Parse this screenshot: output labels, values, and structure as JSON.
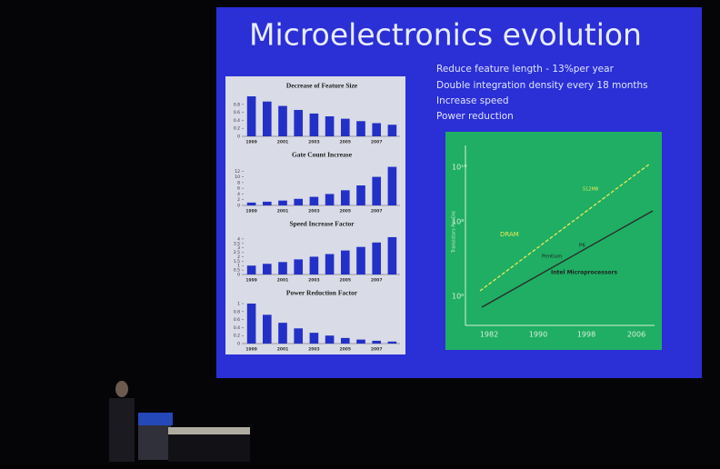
{
  "slide": {
    "title": "Microelectronics evolution",
    "bullets": [
      "Reduce feature length - 13%per year",
      "Double integration density every 18 months",
      "Increase speed",
      "Power reduction"
    ],
    "charts": [
      {
        "title": "Decrease of Feature Size",
        "categories": [
          "1999",
          null,
          "2001",
          null,
          "2003",
          null,
          "2005",
          null,
          "2007",
          null
        ],
        "values": [
          1,
          0.87,
          0.76,
          0.66,
          0.57,
          0.5,
          0.44,
          0.38,
          0.33,
          0.29
        ],
        "ylim": [
          0,
          1
        ],
        "yticks": [
          0,
          0.2,
          0.4,
          0.6,
          0.8
        ]
      },
      {
        "title": "Gate Count Increase",
        "categories": [
          "1999",
          null,
          "2001",
          null,
          "2003",
          null,
          "2005",
          null,
          "2007",
          null
        ],
        "values": [
          1,
          1.3,
          1.7,
          2.3,
          3,
          4,
          5.3,
          7,
          10,
          13.5
        ],
        "ylim": [
          0,
          14
        ],
        "yticks": [
          0,
          2,
          4,
          6,
          8,
          10,
          12
        ]
      },
      {
        "title": "Speed Increase Factor",
        "categories": [
          "1999",
          null,
          "2001",
          null,
          "2003",
          null,
          "2005",
          null,
          "2007",
          null
        ],
        "values": [
          1,
          1.2,
          1.4,
          1.7,
          2,
          2.3,
          2.7,
          3.1,
          3.6,
          4.2
        ],
        "ylim": [
          0,
          4.5
        ],
        "yticks": [
          0,
          0.5,
          1,
          1.5,
          2,
          2.5,
          3,
          3.5,
          4
        ]
      },
      {
        "title": "Power Reduction Factor",
        "categories": [
          "1999",
          null,
          "2001",
          null,
          "2003",
          null,
          "2005",
          null,
          "2007",
          null
        ],
        "values": [
          1,
          0.72,
          0.52,
          0.38,
          0.27,
          0.2,
          0.14,
          0.1,
          0.07,
          0.05
        ],
        "ylim": [
          0,
          1
        ],
        "yticks": [
          0,
          0.2,
          0.4,
          0.6,
          0.8,
          1
        ]
      }
    ],
    "moore_chart": {
      "y_axis_label": "Transistors Per Die",
      "y_labels": [
        "10¹⁰",
        "10⁸",
        "10⁶"
      ],
      "x_labels": [
        "1982",
        "1990",
        "1998",
        "2006"
      ],
      "annotations": [
        "DRAM",
        "512MB",
        "Pentium",
        "P6",
        "Intel Microprocessors"
      ]
    }
  }
}
